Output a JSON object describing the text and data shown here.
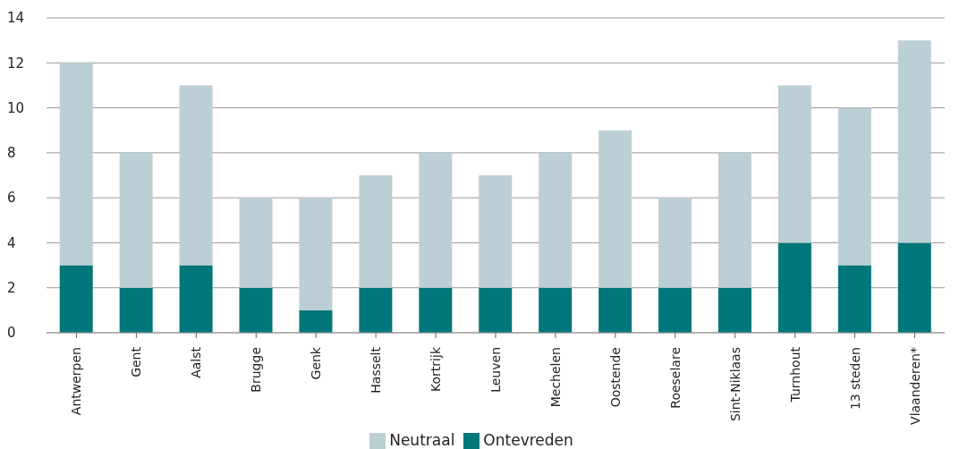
{
  "chart_data": {
    "type": "bar",
    "stacked": true,
    "categories": [
      "Antwerpen",
      "Gent",
      "Aalst",
      "Brugge",
      "Genk",
      "Hasselt",
      "Kortrijk",
      "Leuven",
      "Mechelen",
      "Oostende",
      "Roeselare",
      "Sint-Niklaas",
      "Turnhout",
      "13 steden",
      "Vlaanderen*"
    ],
    "series": [
      {
        "name": "Ontevreden",
        "color": "#00777a",
        "values": [
          3,
          2,
          3,
          2,
          1,
          2,
          2,
          2,
          2,
          2,
          2,
          2,
          4,
          3,
          4
        ]
      },
      {
        "name": "Neutraal",
        "color": "#bccfd4",
        "values": [
          9,
          6,
          8,
          4,
          5,
          5,
          6,
          5,
          6,
          7,
          4,
          6,
          7,
          7,
          9
        ]
      }
    ],
    "ylim": [
      0,
      14
    ],
    "yticks": [
      0,
      2,
      4,
      6,
      8,
      10,
      12,
      14
    ],
    "grid": "y",
    "legend": "bottom"
  }
}
